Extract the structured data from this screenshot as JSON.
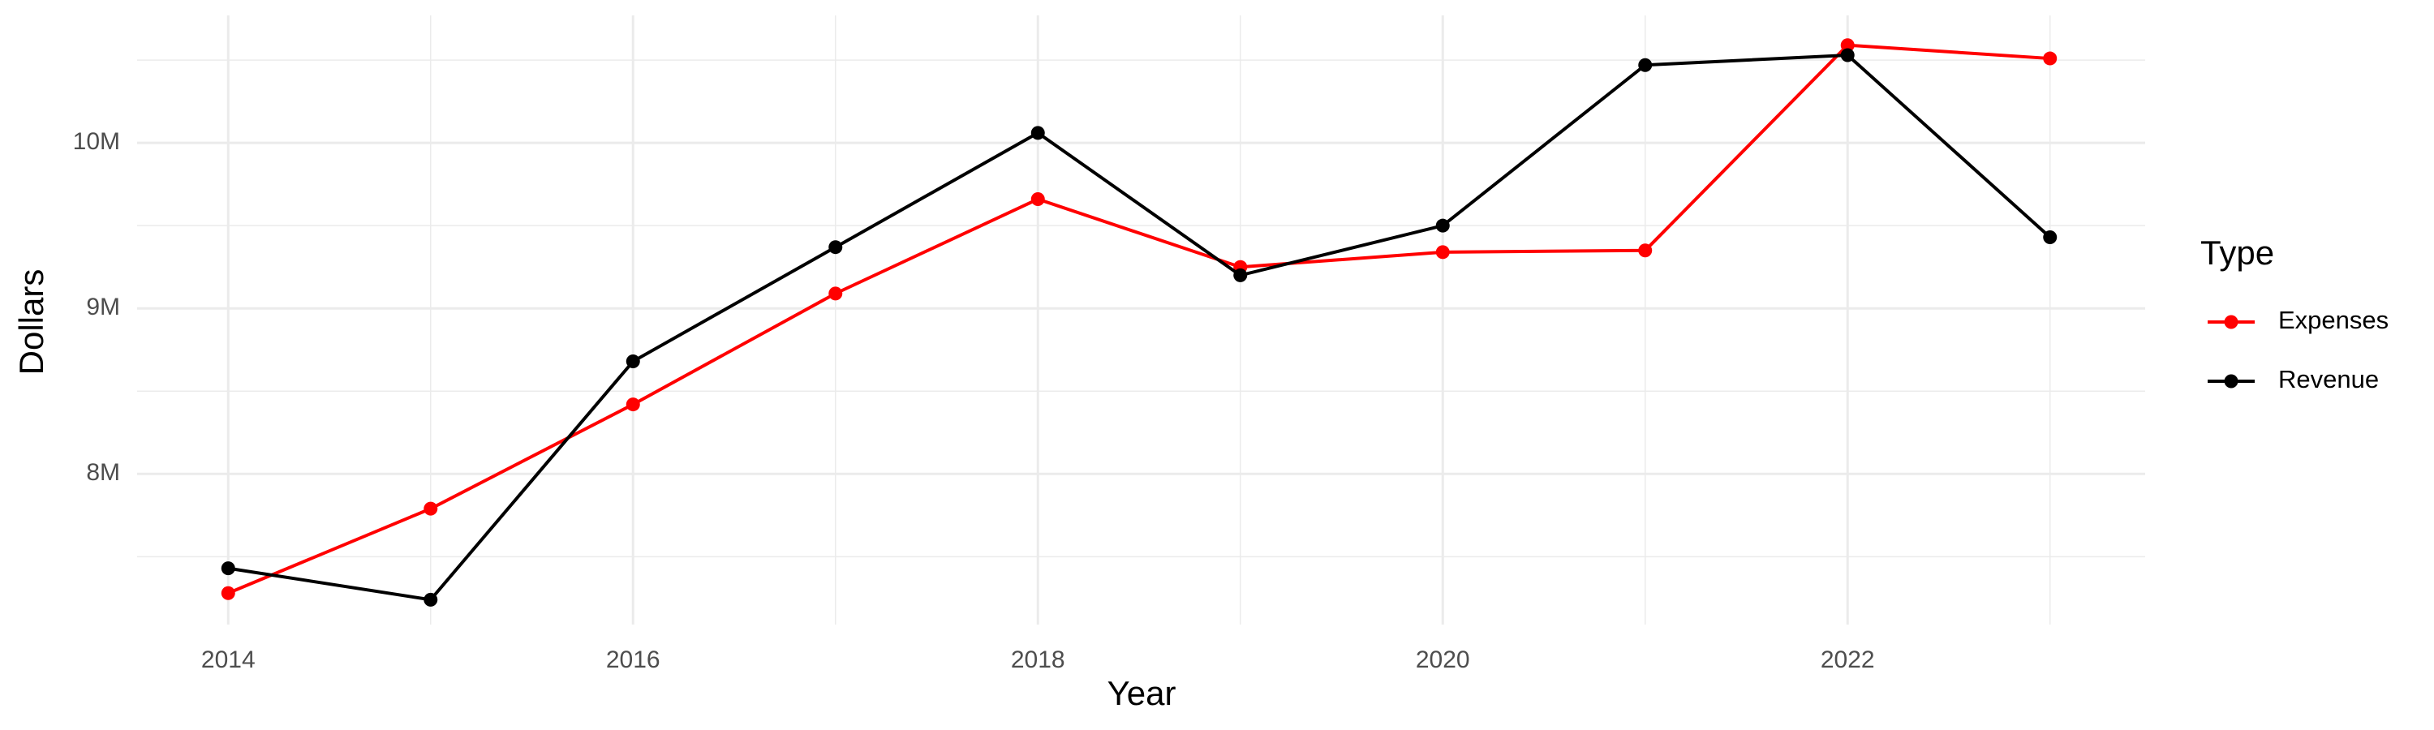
{
  "chart_data": {
    "type": "line",
    "x_label": "Year",
    "y_label": "Dollars",
    "legend_title": "Type",
    "legend_position": "right",
    "x": [
      2014,
      2015,
      2016,
      2017,
      2018,
      2019,
      2020,
      2021,
      2022,
      2023
    ],
    "series": [
      {
        "name": "Expenses",
        "color": "#ff0000",
        "values": [
          7280000,
          7790000,
          8420000,
          9090000,
          9660000,
          9250000,
          9340000,
          9350000,
          10590000,
          10510000
        ]
      },
      {
        "name": "Revenue",
        "color": "#000000",
        "values": [
          7430000,
          7240000,
          8680000,
          9370000,
          10060000,
          9200000,
          9500000,
          10470000,
          10530000,
          9430000
        ]
      }
    ],
    "xlim": [
      2013.55,
      2023.47
    ],
    "xticks": [
      2014,
      2016,
      2018,
      2020,
      2022
    ],
    "ylim": [
      7090000,
      10770000
    ],
    "yticks": [
      {
        "value": 8000000,
        "label": "8M"
      },
      {
        "value": 9000000,
        "label": "9M"
      },
      {
        "value": 10000000,
        "label": "10M"
      }
    ],
    "grid": true
  }
}
